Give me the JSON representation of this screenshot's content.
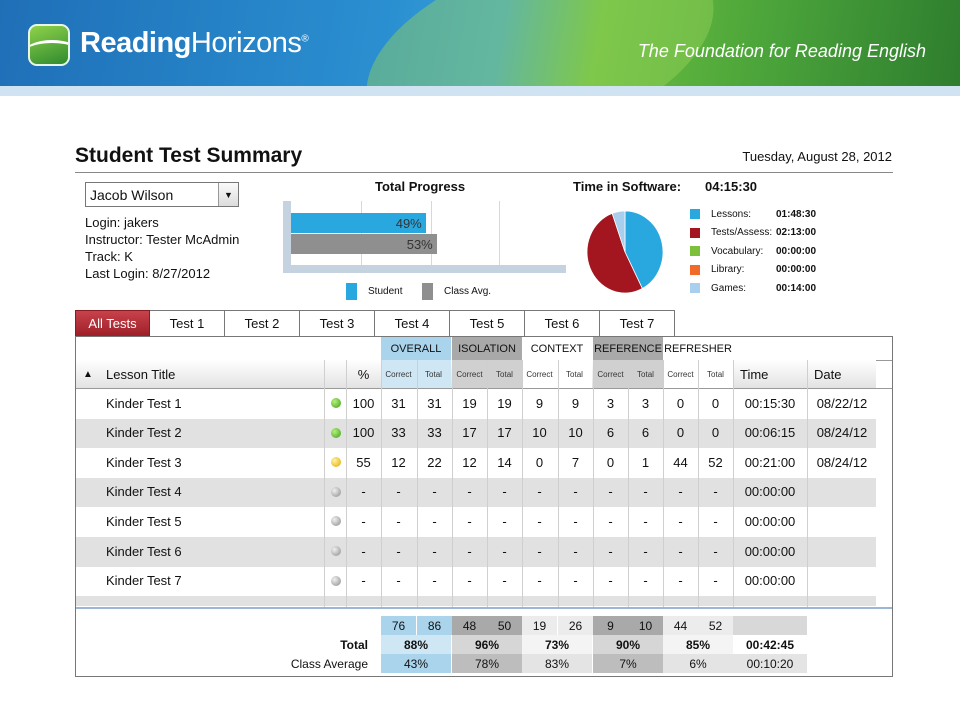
{
  "banner": {
    "logo_bold": "Reading",
    "logo_light": "Horizons",
    "logo_mark": "®",
    "tagline": "The Foundation for Reading English"
  },
  "page": {
    "title": "Student Test Summary",
    "date": "Tuesday, August 28, 2012"
  },
  "student": {
    "selected": "Jacob Wilson",
    "login": "Login: jakers",
    "instructor": "Instructor: Tester McAdmin",
    "track": "Track: K",
    "last_login": "Last Login: 8/27/2012"
  },
  "total_progress": {
    "title": "Total Progress",
    "student_pct": 49,
    "student_label": "49%",
    "class_pct": 53,
    "class_label": "53%",
    "legend_student": "Student",
    "legend_class": "Class Avg.",
    "colors": {
      "student": "#29a8e0",
      "class": "#8f8f8f"
    }
  },
  "time_in_software": {
    "title": "Time in Software:",
    "total": "04:15:30",
    "items": [
      {
        "label": "Lessons:",
        "value": "01:48:30",
        "color": "#29a8e0",
        "seconds": 6510
      },
      {
        "label": "Tests/Assess:",
        "value": "02:13:00",
        "color": "#a3161f",
        "seconds": 7980
      },
      {
        "label": "Vocabulary:",
        "value": "00:00:00",
        "color": "#7bbf3a",
        "seconds": 0
      },
      {
        "label": "Library:",
        "value": "00:00:00",
        "color": "#f06b2a",
        "seconds": 0
      },
      {
        "label": "Games:",
        "value": "00:14:00",
        "color": "#a9cfee",
        "seconds": 840
      }
    ]
  },
  "tabs": [
    {
      "label": "All Tests",
      "active": true
    },
    {
      "label": "Test 1",
      "active": false
    },
    {
      "label": "Test 2",
      "active": false
    },
    {
      "label": "Test 3",
      "active": false
    },
    {
      "label": "Test 4",
      "active": false
    },
    {
      "label": "Test 5",
      "active": false
    },
    {
      "label": "Test 6",
      "active": false
    },
    {
      "label": "Test 7",
      "active": false
    }
  ],
  "table": {
    "sort_arrow": "▲",
    "headers": {
      "lesson_title": "Lesson Title",
      "pct": "%",
      "time": "Time",
      "date": "Date",
      "correct": "Correct",
      "total": "Total"
    },
    "groups": [
      {
        "label": "OVERALL",
        "bg": "#a9d4ec"
      },
      {
        "label": "ISOLATION",
        "bg": "#a9a9a9"
      },
      {
        "label": "CONTEXT",
        "bg": "#ffffff"
      },
      {
        "label": "REFERENCE",
        "bg": "#a9a9a9"
      },
      {
        "label": "REFRESHER",
        "bg": "#ffffff"
      }
    ],
    "rows": [
      {
        "title": "Kinder Test 1",
        "status": "green",
        "pct": "100",
        "cells": [
          "31",
          "31",
          "19",
          "19",
          "9",
          "9",
          "3",
          "3",
          "0",
          "0"
        ],
        "time": "00:15:30",
        "date": "08/22/12"
      },
      {
        "title": "Kinder Test 2",
        "status": "green",
        "pct": "100",
        "cells": [
          "33",
          "33",
          "17",
          "17",
          "10",
          "10",
          "6",
          "6",
          "0",
          "0"
        ],
        "time": "00:06:15",
        "date": "08/24/12"
      },
      {
        "title": "Kinder Test 3",
        "status": "yellow",
        "pct": "55",
        "cells": [
          "12",
          "22",
          "12",
          "14",
          "0",
          "7",
          "0",
          "1",
          "44",
          "52"
        ],
        "time": "00:21:00",
        "date": "08/24/12"
      },
      {
        "title": "Kinder Test 4",
        "status": "gray",
        "pct": "-",
        "cells": [
          "-",
          "-",
          "-",
          "-",
          "-",
          "-",
          "-",
          "-",
          "-",
          "-"
        ],
        "time": "00:00:00",
        "date": ""
      },
      {
        "title": "Kinder Test 5",
        "status": "gray",
        "pct": "-",
        "cells": [
          "-",
          "-",
          "-",
          "-",
          "-",
          "-",
          "-",
          "-",
          "-",
          "-"
        ],
        "time": "00:00:00",
        "date": ""
      },
      {
        "title": "Kinder Test 6",
        "status": "gray",
        "pct": "-",
        "cells": [
          "-",
          "-",
          "-",
          "-",
          "-",
          "-",
          "-",
          "-",
          "-",
          "-"
        ],
        "time": "00:00:00",
        "date": ""
      },
      {
        "title": "Kinder Test 7",
        "status": "gray",
        "pct": "-",
        "cells": [
          "-",
          "-",
          "-",
          "-",
          "-",
          "-",
          "-",
          "-",
          "-",
          "-"
        ],
        "time": "00:00:00",
        "date": ""
      }
    ],
    "summary": {
      "counts": [
        "76",
        "86",
        "48",
        "50",
        "19",
        "26",
        "9",
        "10",
        "44",
        "52"
      ],
      "total_label": "Total",
      "total_pcts": [
        "88%",
        "96%",
        "73%",
        "90%",
        "85%"
      ],
      "total_time": "00:42:45",
      "class_label": "Class Average",
      "class_pcts": [
        "43%",
        "78%",
        "83%",
        "7%",
        "6%"
      ],
      "class_time": "00:10:20"
    }
  }
}
